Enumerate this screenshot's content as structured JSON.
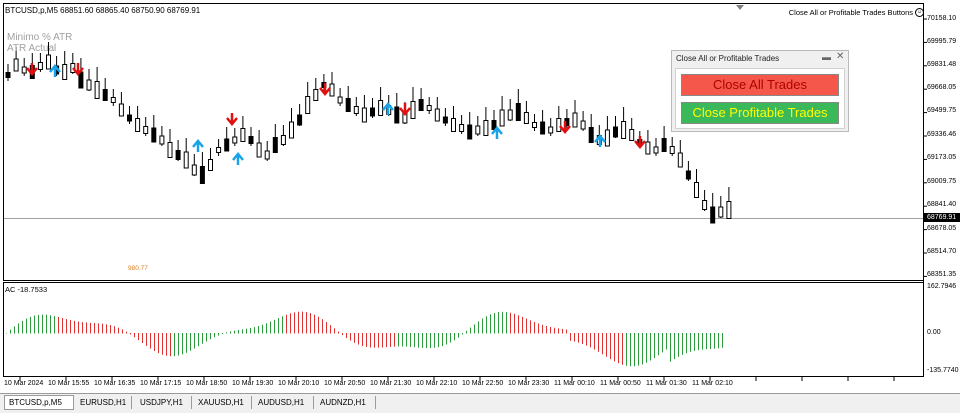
{
  "header": {
    "symbol_info": "BTCUSD,p,M5  68851.60 68865.40 68750.90 68769.91",
    "indicator_line1": "Minimo % ATR",
    "indicator_line2": "ATR Actual",
    "ea_name": "Close All or Profitable Trades Buttons"
  },
  "price_axis": [
    "70158.10",
    "69995.79",
    "69831.48",
    "69668.05",
    "69499.75",
    "69336.46",
    "69173.05",
    "69009.75",
    "68841.40",
    "68678.05",
    "68514.70",
    "68351.35"
  ],
  "current_price": "68769.91",
  "annotation_value": "980.77",
  "subwindow": {
    "label": "AC -18.7533",
    "axis": [
      "162.7946",
      "0.00",
      "-135.7740"
    ]
  },
  "time_axis": [
    "10 Mar 2024",
    "10 Mar 15:55",
    "10 Mar 16:35",
    "10 Mar 17:15",
    "10 Mar 18:50",
    "10 Mar 19:30",
    "10 Mar 20:10",
    "10 Mar 20:50",
    "10 Mar 21:30",
    "10 Mar 22:10",
    "10 Mar 22:50",
    "10 Mar 23:30",
    "11 Mar 00:10",
    "11 Mar 00:50",
    "11 Mar 01:30",
    "11 Mar 02:10"
  ],
  "panel": {
    "title": "Close All or Profitable Trades",
    "close_all_label": "Close All Trades",
    "close_profitable_label": "Close Profitable Trades",
    "close_all_color": "#f5584b",
    "close_profitable_color": "#3bb85a"
  },
  "tabs": [
    "BTCUSD,p,M5",
    "EURUSD,H1",
    "USDJPY,H1",
    "XAUUSD,H1",
    "AUDUSD,H1",
    "AUDNZD,H1"
  ],
  "colors": {
    "up_arrow": "#1aa3e8",
    "down_arrow": "#e01010",
    "ac_up": "#2a9a3a",
    "ac_down": "#e03030"
  }
}
